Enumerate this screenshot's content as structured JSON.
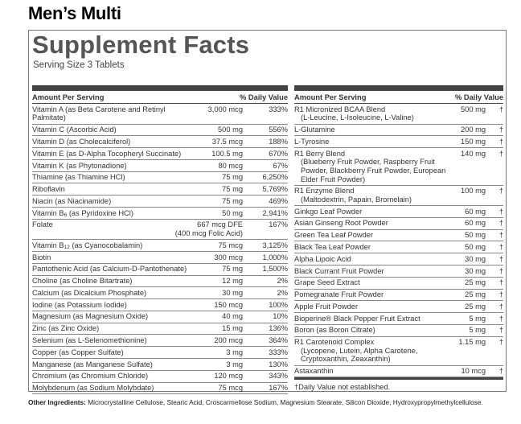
{
  "title": "Men’s Multi",
  "panel": {
    "heading": "Supplement Facts",
    "serving": "Serving Size 3 Tablets",
    "left": {
      "header": [
        "Amount Per Serving",
        "% Daily Value"
      ],
      "rows": [
        {
          "name": "Vitamin A (as Beta Carotene and Retinyl Palmitate)",
          "amount": "3,000 mcg",
          "dv": "333%"
        },
        {
          "name": "Vitamin C (Ascorbic Acid)",
          "amount": "500 mg",
          "dv": "556%"
        },
        {
          "name": "Vitamin D (as Cholecalciferol)",
          "amount": "37.5 mcg",
          "dv": "188%"
        },
        {
          "name": "Vitamin E (as D-Alpha Tocopheryl Succinate)",
          "amount": "100.5 mg",
          "dv": "670%"
        },
        {
          "name": "Vitamin K (as Phytonadione)",
          "amount": "80 mcg",
          "dv": "67%"
        },
        {
          "name": "Thiamine (as Thiamine HCl)",
          "amount": "75 mg",
          "dv": "6,250%"
        },
        {
          "name": "Riboflavin",
          "amount": "75 mg",
          "dv": "5,769%"
        },
        {
          "name": "Niacin (as Niacinamide)",
          "amount": "75 mg",
          "dv": "469%"
        },
        {
          "name": [
            "Vitamin B",
            "6",
            " (as Pyridoxine HCl)"
          ],
          "amount": "50 mg",
          "dv": "2,941%"
        },
        {
          "name": "Folate",
          "amount": "667 mcg DFE",
          "amount_note": "(400 mcg Folic Acid)",
          "dv": "167%"
        },
        {
          "name": [
            "Vitamin B",
            "12",
            " (as Cyanocobalamin)"
          ],
          "amount": "75 mcg",
          "dv": "3,125%"
        },
        {
          "name": "Biotin",
          "amount": "300 mcg",
          "dv": "1,000%"
        },
        {
          "name": "Pantothenic Acid (as Calcium-D-Pantothenate)",
          "amount": "75 mg",
          "dv": "1,500%"
        },
        {
          "name": "Choline (as Choline Bitartrate)",
          "amount": "12 mg",
          "dv": "2%"
        },
        {
          "name": "Calcium (as Dicalcium Phosphate)",
          "amount": "30 mg",
          "dv": "2%"
        },
        {
          "name": "Iodine (as Potassium Iodide)",
          "amount": "150 mcg",
          "dv": "100%"
        },
        {
          "name": "Magnesium (as Magnesium Oxide)",
          "amount": "40 mg",
          "dv": "10%"
        },
        {
          "name": "Zinc (as Zinc Oxide)",
          "amount": "15 mg",
          "dv": "136%"
        },
        {
          "name": "Selenium (as L-Selenomethionine)",
          "amount": "200 mcg",
          "dv": "364%"
        },
        {
          "name": "Copper (as Copper Sulfate)",
          "amount": "3 mg",
          "dv": "333%"
        },
        {
          "name": "Manganese (as Manganese Sulfate)",
          "amount": "3 mg",
          "dv": "130%"
        },
        {
          "name": "Chromium (as Chromium Chloride)",
          "amount": "120 mcg",
          "dv": "343%"
        },
        {
          "name": "Molybdenum (as Sodium Molybdate)",
          "amount": "75 mcg",
          "dv": "167%"
        }
      ]
    },
    "right": {
      "header": [
        "Amount Per Serving",
        "% Daily Value"
      ],
      "rows": [
        {
          "name": "R1 Micronized BCAA Blend",
          "sub": "(L-Leucine, L-Isoleucine, L-Valine)",
          "amount": "500 mg",
          "dv": "†"
        },
        {
          "name": "L-Glutamine",
          "amount": "200 mg",
          "dv": "†"
        },
        {
          "name": "L-Tyrosine",
          "amount": "150 mg",
          "dv": "†"
        },
        {
          "name": "R1 Berry Blend",
          "sub": "(Blueberry Fruit Powder, Raspberry Fruit Powder, Blackberry Fruit Powder, European Elder Fruit Powder)",
          "amount": "140 mg",
          "dv": "†"
        },
        {
          "name": "R1 Enzyme Blend",
          "sub": "(Maltodextrin, Papain, Bromelain)",
          "amount": "100 mg",
          "dv": "†"
        },
        {
          "name": "Ginkgo Leaf Powder",
          "amount": "60 mg",
          "dv": "†"
        },
        {
          "name": "Asian Ginseng Root Powder",
          "amount": "60 mg",
          "dv": "†"
        },
        {
          "name": "Green Tea Leaf Powder",
          "amount": "50 mg",
          "dv": "†"
        },
        {
          "name": "Black Tea Leaf Powder",
          "amount": "50 mg",
          "dv": "†"
        },
        {
          "name": "Alpha Lipoic Acid",
          "amount": "30 mg",
          "dv": "†"
        },
        {
          "name": "Black Currant Fruit Powder",
          "amount": "30 mg",
          "dv": "†"
        },
        {
          "name": "Grape Seed Extract",
          "amount": "25 mg",
          "dv": "†"
        },
        {
          "name": "Pomegranate Fruit Powder",
          "amount": "25 mg",
          "dv": "†"
        },
        {
          "name": "Apple Fruit Powder",
          "amount": "25 mg",
          "dv": "†"
        },
        {
          "name": "Bioperine® Black Pepper Fruit Extract",
          "amount": "5 mg",
          "dv": "†"
        },
        {
          "name": "Boron (as Boron Citrate)",
          "amount": "5 mg",
          "dv": "†"
        },
        {
          "name": "R1 Carotenoid Complex",
          "sub": "(Lycopene, Lutein, Alpha Carotene, Cryptoxanthin, Zeaxanthin)",
          "amount": "1.15 mg",
          "dv": "†"
        },
        {
          "name": "Astaxanthin",
          "amount": "10 mcg",
          "dv": "†"
        }
      ],
      "footnote": "†Daily Value not established."
    }
  },
  "other": {
    "label": "Other Ingredients:",
    "text": "Microcrystalline Cellulose, Stearic Acid, Croscarmellose Sodium, Magnesium Stearate, Silicon Dioxide, Hydroxypropylmethylcellulose."
  }
}
